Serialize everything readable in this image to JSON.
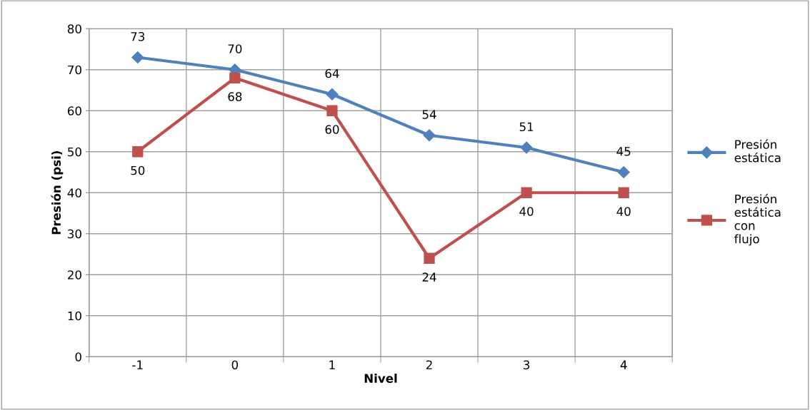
{
  "chart_data": {
    "type": "line",
    "xlabel": "Nivel",
    "ylabel": "Presión (psi)",
    "categories": [
      "-1",
      "0",
      "1",
      "2",
      "3",
      "4"
    ],
    "series": [
      {
        "name": "Presión estática",
        "color": "#4f81bd",
        "marker": "diamond",
        "values": [
          73,
          70,
          64,
          54,
          51,
          45
        ]
      },
      {
        "name": "Presión estática con flujo",
        "color": "#c0504d",
        "marker": "square",
        "values": [
          50,
          68,
          60,
          24,
          40,
          40
        ]
      }
    ],
    "ylim": [
      0,
      80
    ],
    "yticks": [
      0,
      10,
      20,
      30,
      40,
      50,
      60,
      70,
      80
    ],
    "grid": true,
    "legend": "right",
    "data_labels": true,
    "line_style": "solid"
  }
}
